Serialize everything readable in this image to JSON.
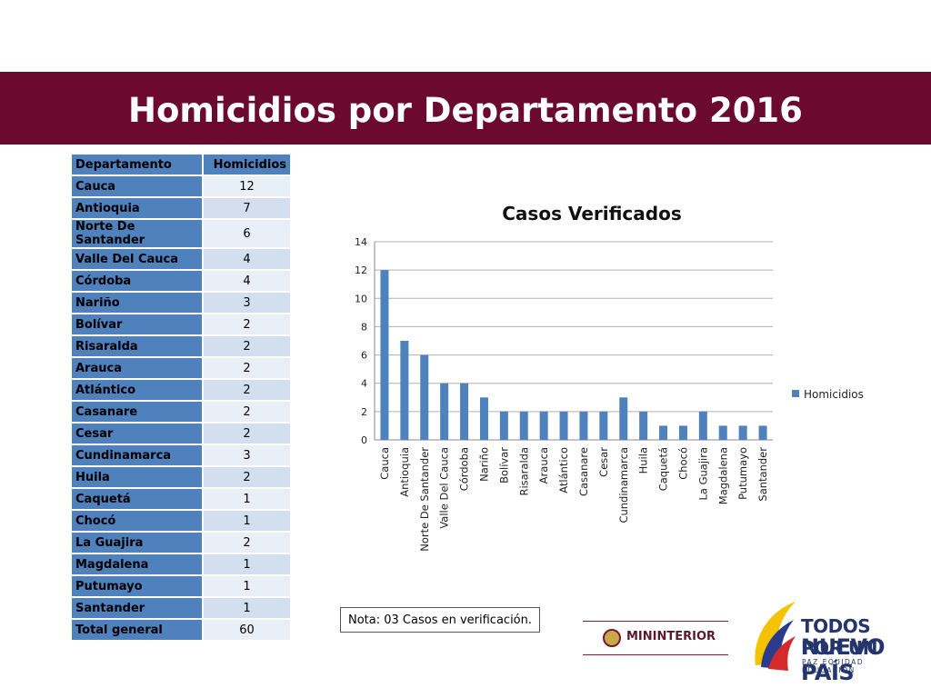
{
  "header": {
    "title": "Homicidios por Departamento 2016"
  },
  "table": {
    "col_dept": "Departamento",
    "col_value": "Homicidios",
    "rows": [
      {
        "dept": "Cauca",
        "value": "12"
      },
      {
        "dept": "Antioquia",
        "value": "7"
      },
      {
        "dept": "Norte De Santander",
        "value": "6"
      },
      {
        "dept": "Valle Del Cauca",
        "value": "4"
      },
      {
        "dept": "Córdoba",
        "value": "4"
      },
      {
        "dept": "Nariño",
        "value": "3"
      },
      {
        "dept": "Bolívar",
        "value": "2"
      },
      {
        "dept": "Risaralda",
        "value": "2"
      },
      {
        "dept": "Arauca",
        "value": "2"
      },
      {
        "dept": "Atlántico",
        "value": "2"
      },
      {
        "dept": "Casanare",
        "value": "2"
      },
      {
        "dept": "Cesar",
        "value": "2"
      },
      {
        "dept": "Cundinamarca",
        "value": "3"
      },
      {
        "dept": "Huila",
        "value": "2"
      },
      {
        "dept": "Caquetá",
        "value": "1"
      },
      {
        "dept": "Chocó",
        "value": "1"
      },
      {
        "dept": "La Guajira",
        "value": "2"
      },
      {
        "dept": "Magdalena",
        "value": "1"
      },
      {
        "dept": "Putumayo",
        "value": "1"
      },
      {
        "dept": "Santander",
        "value": "1"
      }
    ],
    "total_label": "Total general",
    "total_value": "60"
  },
  "chart_data": {
    "type": "bar",
    "title": "Casos Verificados",
    "categories": [
      "Cauca",
      "Antioquia",
      "Norte De Santander",
      "Valle Del Cauca",
      "Córdoba",
      "Nariño",
      "Bolívar",
      "Risaralda",
      "Arauca",
      "Atlántico",
      "Casanare",
      "Cesar",
      "Cundinamarca",
      "Huila",
      "Caquetá",
      "Chocó",
      "La Guajira",
      "Magdalena",
      "Putumayo",
      "Santander"
    ],
    "series": [
      {
        "name": "Homicidios",
        "values": [
          12,
          7,
          6,
          4,
          4,
          3,
          2,
          2,
          2,
          2,
          2,
          2,
          3,
          2,
          1,
          1,
          2,
          1,
          1,
          1
        ],
        "color": "#4f81bd"
      }
    ],
    "ylim": [
      0,
      14
    ],
    "yticks": [
      0,
      2,
      4,
      6,
      8,
      10,
      12,
      14
    ],
    "grid": true,
    "legend": "right"
  },
  "note": {
    "text": "Nota: 03 Casos en verificación."
  },
  "logos": {
    "ministry": "MININTERIOR",
    "slogan_line1": "TODOS POR UN",
    "slogan_line2": "NUEVO PAÍS",
    "slogan_line3": "PAZ  EQUIDAD  EDUCACIÓN"
  },
  "colors": {
    "banner": "#6b0a2e",
    "header_cell": "#4f81bd",
    "bar": "#4f81bd"
  }
}
